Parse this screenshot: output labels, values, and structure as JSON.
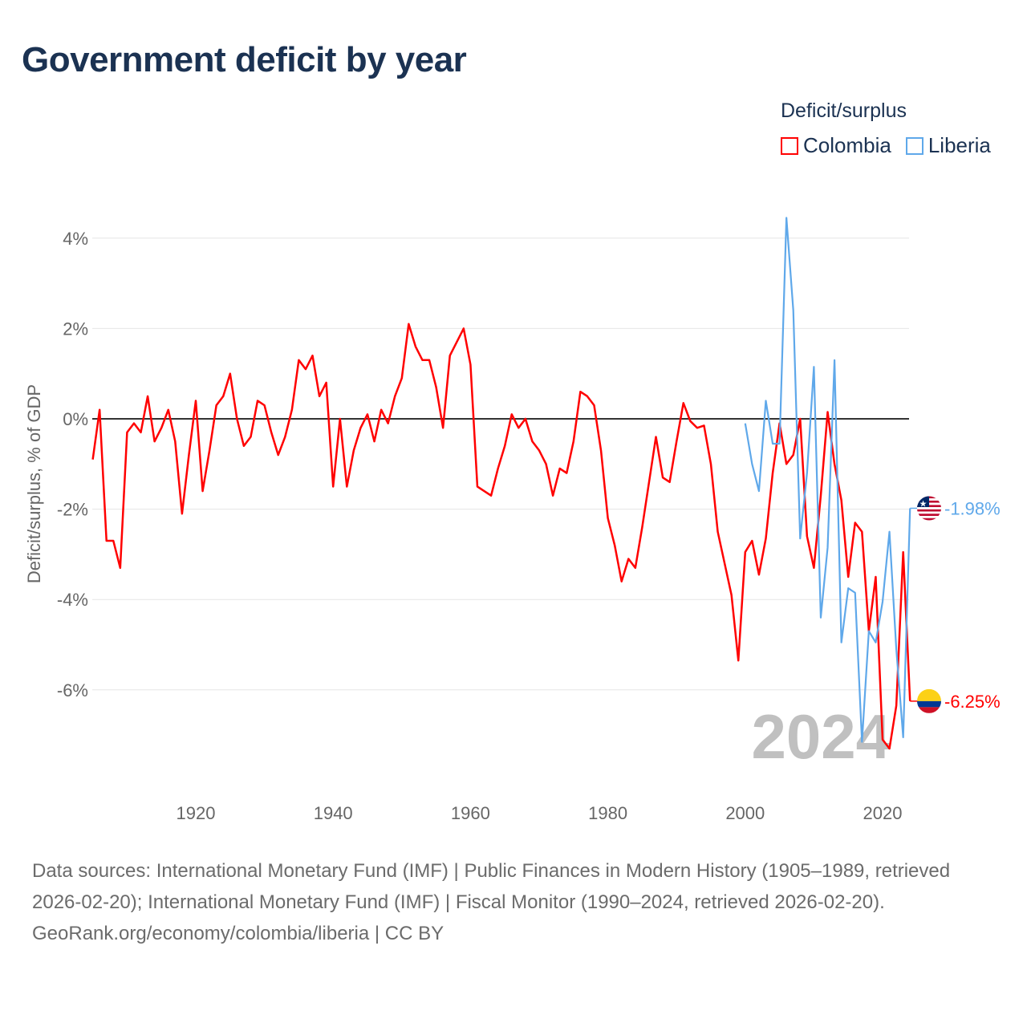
{
  "title": "Government deficit by year",
  "legend": {
    "title": "Deficit/surplus",
    "items": [
      {
        "name": "Colombia",
        "color": "#ff0000"
      },
      {
        "name": "Liberia",
        "color": "#5fa8ea"
      }
    ]
  },
  "footer": {
    "sources": "Data sources: International Monetary Fund (IMF) | Public Finances in Modern History (1905–1989, retrieved 2026-02-20); International Monetary Fund (IMF) | Fiscal Monitor (1990–2024, retrieved 2026-02-20).",
    "credit": "GeoRank.org/economy/colombia/liberia | CC BY"
  },
  "chart_data": {
    "type": "line",
    "title": "Government deficit by year",
    "xlabel": "",
    "ylabel": "Deficit/surplus, % of GDP",
    "xlim": [
      1905,
      2024
    ],
    "ylim": [
      -8.2,
      4.6
    ],
    "xticks": [
      1920,
      1940,
      1960,
      1980,
      2000,
      2020
    ],
    "yticks": [
      -6,
      -4,
      -2,
      0,
      2,
      4
    ],
    "ytick_labels": [
      "-6%",
      "-4%",
      "-2%",
      "0%",
      "2%",
      "4%"
    ],
    "grid": true,
    "legend_position": "top-right",
    "year_label": "2024",
    "series": [
      {
        "name": "Colombia",
        "color": "#ff0000",
        "start_year": 1905,
        "end_label": "-6.25%",
        "flag": "colombia-flag",
        "values": [
          -0.9,
          0.2,
          -2.7,
          -2.7,
          -3.3,
          -0.3,
          -0.1,
          -0.3,
          0.5,
          -0.5,
          -0.2,
          0.2,
          -0.5,
          -2.1,
          -0.8,
          0.4,
          -1.6,
          -0.7,
          0.3,
          0.5,
          1.0,
          0,
          -0.6,
          -0.4,
          0.4,
          0.3,
          -0.3,
          -0.8,
          -0.4,
          0.2,
          1.3,
          1.1,
          1.4,
          0.5,
          0.8,
          -1.5,
          0,
          -1.5,
          -0.7,
          -0.2,
          0.1,
          -0.5,
          0.2,
          -0.1,
          0.5,
          0.9,
          2.1,
          1.6,
          1.3,
          1.3,
          0.7,
          -0.2,
          1.4,
          1.7,
          2.0,
          1.2,
          -1.5,
          -1.6,
          -1.7,
          -1.1,
          -0.6,
          0.1,
          -0.2,
          0,
          -0.5,
          -0.7,
          -1.0,
          -1.7,
          -1.1,
          -1.2,
          -0.5,
          0.6,
          0.5,
          0.3,
          -0.7,
          -2.2,
          -2.8,
          -3.6,
          -3.1,
          -3.3,
          -2.4,
          -1.4,
          -0.4,
          -1.3,
          -1.4,
          -0.5,
          0.35,
          -0.05,
          -0.2,
          -0.15,
          -1.0,
          -2.5,
          -3.2,
          -3.9,
          -5.35,
          -2.95,
          -2.7,
          -3.45,
          -2.65,
          -1.2,
          -0.1,
          -1.0,
          -0.8,
          0.0,
          -2.6,
          -3.3,
          -1.7,
          0.15,
          -1.0,
          -1.8,
          -3.5,
          -2.3,
          -2.5,
          -4.7,
          -3.5,
          -7.1,
          -7.3,
          -6.35,
          -2.95,
          -6.25
        ]
      },
      {
        "name": "Liberia",
        "color": "#5fa8ea",
        "start_year": 2000,
        "end_label": "-1.98%",
        "flag": "liberia-flag",
        "values": [
          -0.1,
          -1.0,
          -1.6,
          0.4,
          -0.55,
          -0.55,
          4.45,
          2.4,
          -2.65,
          -1.2,
          1.15,
          -4.4,
          -2.85,
          1.3,
          -4.95,
          -3.75,
          -3.85,
          -7.15,
          -4.7,
          -4.95,
          -4.05,
          -2.5,
          -5.1,
          -7.05,
          -1.98
        ]
      }
    ]
  }
}
